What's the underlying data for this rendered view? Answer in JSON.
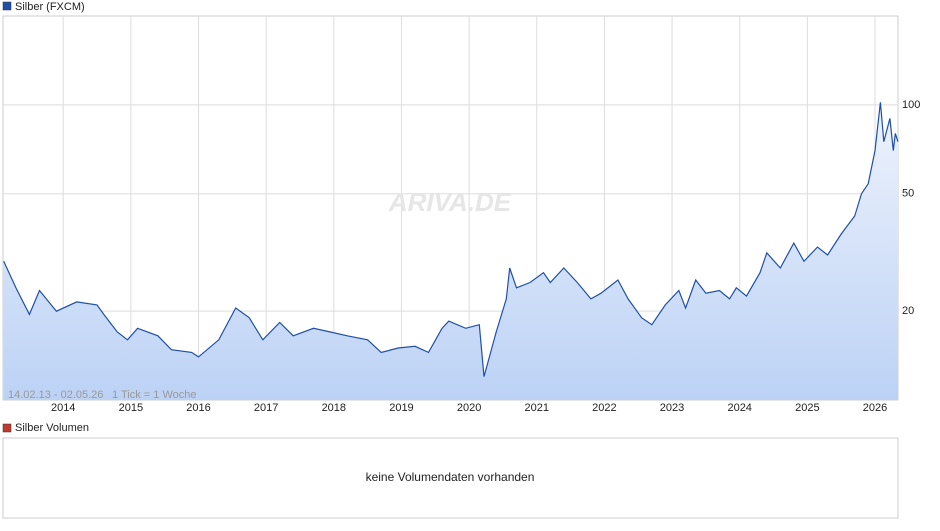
{
  "chart_data": {
    "type": "line",
    "x": [
      2013.12,
      2013.3,
      2013.5,
      2013.65,
      2013.9,
      2014.2,
      2014.5,
      2014.6,
      2014.8,
      2014.95,
      2015.1,
      2015.4,
      2015.6,
      2015.9,
      2016.0,
      2016.3,
      2016.55,
      2016.75,
      2016.95,
      2017.2,
      2017.4,
      2017.7,
      2017.95,
      2018.2,
      2018.5,
      2018.7,
      2018.95,
      2019.2,
      2019.4,
      2019.6,
      2019.7,
      2019.95,
      2020.15,
      2020.22,
      2020.4,
      2020.55,
      2020.6,
      2020.7,
      2020.9,
      2021.1,
      2021.2,
      2021.4,
      2021.6,
      2021.8,
      2021.95,
      2022.2,
      2022.35,
      2022.55,
      2022.7,
      2022.9,
      2023.1,
      2023.2,
      2023.35,
      2023.5,
      2023.7,
      2023.85,
      2023.95,
      2024.1,
      2024.3,
      2024.4,
      2024.6,
      2024.8,
      2024.95,
      2025.15,
      2025.3,
      2025.5,
      2025.7,
      2025.8,
      2025.9,
      2026.0,
      2026.08,
      2026.13,
      2026.22,
      2026.27,
      2026.3,
      2026.34
    ],
    "series": [
      {
        "name": "Silber (FXCM)",
        "color": "#1f4fa8",
        "values": [
          29.5,
          24,
          19.5,
          23.5,
          20,
          21.5,
          21,
          19.5,
          17,
          16,
          17.5,
          16.5,
          14.8,
          14.5,
          14,
          16,
          20.5,
          19,
          16,
          18.3,
          16.5,
          17.5,
          17,
          16.5,
          16,
          14.5,
          15,
          15.2,
          14.5,
          17.5,
          18.5,
          17.5,
          18,
          12,
          17,
          22,
          28,
          24,
          25,
          27,
          25,
          28,
          25,
          22,
          23,
          25.5,
          22,
          19,
          18,
          21,
          23.5,
          20.5,
          25.5,
          23,
          23.5,
          22,
          24,
          22.5,
          27,
          31.5,
          28,
          34,
          29.5,
          33,
          31,
          36.5,
          42,
          50,
          54,
          70,
          102,
          75,
          90,
          70,
          80,
          75
        ]
      }
    ],
    "xlim": [
      2013.11,
      2026.34
    ],
    "xticks": [
      2014,
      2015,
      2016,
      2017,
      2018,
      2019,
      2020,
      2021,
      2022,
      2023,
      2024,
      2025,
      2026
    ],
    "ylim": [
      10,
      200
    ],
    "yticks": [
      20,
      50,
      100
    ],
    "log_scale": true,
    "grid": true,
    "range_note": "14.02.13 - 02.05.26",
    "tick_note": "1 Tick = 1 Woche",
    "watermark": "ARIVA.DE"
  },
  "volume_panel": {
    "title": "Silber Volumen",
    "color": "#c0392b",
    "message": "keine Volumendaten vorhanden"
  }
}
